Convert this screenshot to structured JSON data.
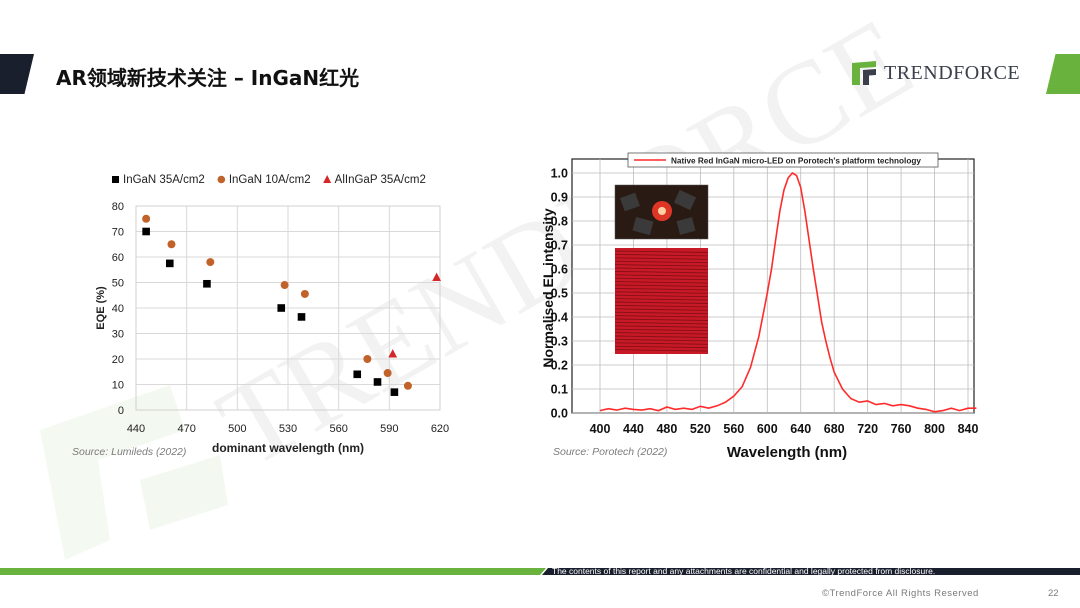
{
  "slide": {
    "title": "AR领域新技术关注 – InGaN红光",
    "logo_text": "TRENDFORCE",
    "watermark_text": "TRENDFORCE",
    "page_number": "22",
    "copyright": "©TrendForce All Rights Reserved",
    "confidential": "The contents of this report and any attachments are confidential and legally protected from disclosure.",
    "colors": {
      "dark": "#1a1f2e",
      "green": "#6ab23e",
      "accent_orange": "#c0622a",
      "accent_red": "#d62728"
    }
  },
  "source_left": "Source: Lumileds (2022)",
  "source_right": "Source: Porotech (2022)",
  "chart_data": [
    {
      "type": "scatter",
      "title": "",
      "xlabel": "dominant wavelength (nm)",
      "ylabel": "EQE (%)",
      "xlim": [
        440,
        620
      ],
      "ylim": [
        0,
        80
      ],
      "xticks": [
        440,
        470,
        500,
        530,
        560,
        590,
        620
      ],
      "yticks": [
        0,
        10,
        20,
        30,
        40,
        50,
        60,
        70,
        80
      ],
      "grid": true,
      "legend_position": "top",
      "series": [
        {
          "name": "InGaN 35A/cm2",
          "marker": "square",
          "color": "#000000",
          "points": [
            [
              446,
              70
            ],
            [
              460,
              57.5
            ],
            [
              482,
              49.5
            ],
            [
              526,
              40
            ],
            [
              538,
              36.5
            ],
            [
              571,
              14
            ],
            [
              583,
              11
            ],
            [
              593,
              7
            ]
          ]
        },
        {
          "name": "InGaN 10A/cm2",
          "marker": "circle",
          "color": "#c0622a",
          "points": [
            [
              446,
              75
            ],
            [
              461,
              65
            ],
            [
              484,
              58
            ],
            [
              528,
              49
            ],
            [
              540,
              45.5
            ],
            [
              577,
              20
            ],
            [
              589,
              14.5
            ],
            [
              601,
              9.5
            ]
          ]
        },
        {
          "name": "AlInGaP 35A/cm2",
          "marker": "triangle",
          "color": "#d62728",
          "points": [
            [
              592,
              22
            ],
            [
              618,
              52
            ]
          ]
        }
      ]
    },
    {
      "type": "line",
      "title": "",
      "xlabel": "Wavelength (nm)",
      "ylabel": "Normalised EL intensity",
      "xlim": [
        400,
        850
      ],
      "ylim": [
        0,
        1.0
      ],
      "xticks": [
        400,
        440,
        480,
        520,
        560,
        600,
        640,
        680,
        720,
        760,
        800,
        840
      ],
      "yticks": [
        0.0,
        0.1,
        0.2,
        0.3,
        0.4,
        0.5,
        0.6,
        0.7,
        0.8,
        0.9,
        1.0
      ],
      "grid": true,
      "legend_position": "top",
      "series": [
        {
          "name": "Native Red InGaN micro-LED on Porotech's platform technology",
          "color": "#ff2a2a",
          "x": [
            400,
            410,
            420,
            430,
            440,
            450,
            460,
            470,
            480,
            490,
            500,
            510,
            520,
            530,
            540,
            550,
            560,
            570,
            580,
            590,
            600,
            605,
            610,
            615,
            620,
            625,
            630,
            635,
            640,
            645,
            650,
            655,
            660,
            665,
            670,
            675,
            680,
            690,
            700,
            710,
            720,
            730,
            740,
            750,
            760,
            770,
            780,
            790,
            800,
            810,
            820,
            830,
            840,
            850
          ],
          "y": [
            0.01,
            0.018,
            0.012,
            0.02,
            0.015,
            0.012,
            0.018,
            0.01,
            0.025,
            0.015,
            0.02,
            0.015,
            0.028,
            0.02,
            0.03,
            0.045,
            0.07,
            0.11,
            0.19,
            0.32,
            0.5,
            0.6,
            0.72,
            0.84,
            0.93,
            0.98,
            1.0,
            0.99,
            0.94,
            0.84,
            0.72,
            0.6,
            0.49,
            0.38,
            0.3,
            0.23,
            0.17,
            0.1,
            0.06,
            0.045,
            0.05,
            0.035,
            0.04,
            0.03,
            0.035,
            0.03,
            0.02,
            0.015,
            0.005,
            0.01,
            0.02,
            0.01,
            0.02,
            0.02
          ]
        }
      ]
    }
  ]
}
